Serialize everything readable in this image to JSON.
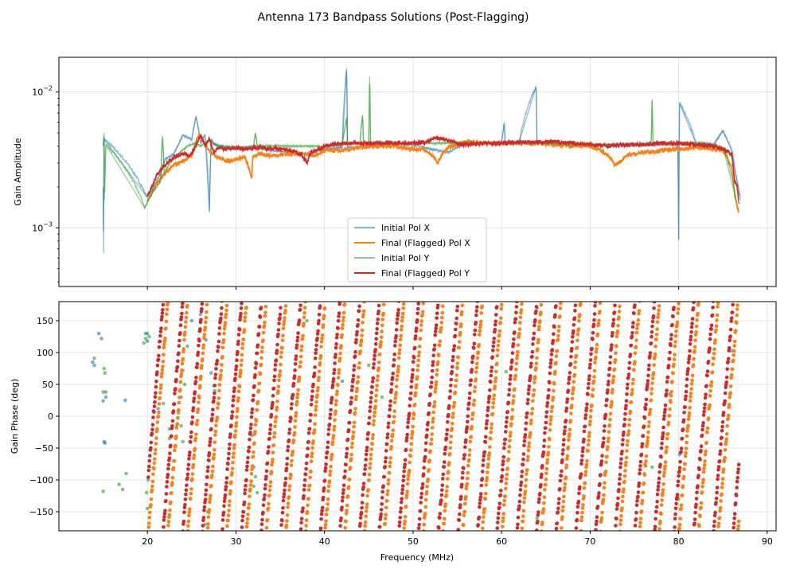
{
  "chart_data": [
    {
      "type": "line",
      "title": "Antenna 173 Bandpass Solutions (Post-Flagging)",
      "xlabel": "Frequency (MHz)",
      "ylabel": "Gain Amplitude",
      "yscale": "log",
      "xlim": [
        10,
        91
      ],
      "ylim": [
        0.00037,
        0.018
      ],
      "xticks": [
        20,
        30,
        40,
        50,
        60,
        70,
        80,
        90
      ],
      "yticks": [
        {
          "value": 0.001,
          "base": "10",
          "exp": "−3"
        },
        {
          "value": 0.01,
          "base": "10",
          "exp": "−2"
        }
      ],
      "legend_position": "lower-center",
      "series": [
        {
          "name": "Initial Pol X",
          "color": "#1f77b4",
          "alpha": 0.5,
          "x": [
            15.0,
            15.05,
            15.1,
            19.9,
            20.5,
            21.5,
            22.0,
            23.0,
            24.0,
            25.0,
            25.5,
            26.0,
            26.5,
            27.0,
            27.2,
            27.4,
            28.0,
            30.0,
            32.0,
            34.0,
            36.0,
            38.0,
            40.0,
            42.0,
            42.5,
            42.6,
            44.0,
            46.0,
            48.0,
            50.0,
            52.0,
            54.0,
            56.0,
            58.0,
            60.0,
            60.3,
            60.4,
            62.0,
            63.9,
            64.0,
            66.0,
            68.0,
            70.0,
            72.0,
            74.0,
            76.0,
            78.0,
            79.9,
            80.0,
            80.1,
            82.0,
            84.0,
            85.0,
            86.0,
            86.5,
            87.0
          ],
          "values": [
            0.002,
            0.00065,
            0.0045,
            0.0017,
            0.0019,
            0.0025,
            0.0032,
            0.0035,
            0.0048,
            0.0045,
            0.0066,
            0.0042,
            0.0048,
            0.0013,
            0.0045,
            0.0042,
            0.004,
            0.0038,
            0.0039,
            0.0037,
            0.0036,
            0.0035,
            0.0038,
            0.0039,
            0.015,
            0.0039,
            0.0039,
            0.0041,
            0.0041,
            0.0041,
            0.0038,
            0.0036,
            0.0042,
            0.0042,
            0.0042,
            0.006,
            0.0042,
            0.0043,
            0.011,
            0.0042,
            0.0042,
            0.0042,
            0.004,
            0.0041,
            0.0041,
            0.0041,
            0.0041,
            0.0041,
            0.00082,
            0.0083,
            0.0041,
            0.0041,
            0.0052,
            0.0037,
            0.0024,
            0.0016
          ]
        },
        {
          "name": "Final (Flagged) Pol X",
          "color": "#ff7f0e",
          "alpha": 1.0,
          "x": [
            20.0,
            20.5,
            21.0,
            22.0,
            23.0,
            24.0,
            25.0,
            25.8,
            26.3,
            27.0,
            28.0,
            29.0,
            30.0,
            31.0,
            31.8,
            31.9,
            32.0,
            33.0,
            34.0,
            36.0,
            37.0,
            38.0,
            39.0,
            40.0,
            42.0,
            44.0,
            46.0,
            48.0,
            50.0,
            51.0,
            52.0,
            52.8,
            53.3,
            54.0,
            55.0,
            56.0,
            57.0,
            58.0,
            60.0,
            62.0,
            64.0,
            66.0,
            68.0,
            70.0,
            71.0,
            72.0,
            72.8,
            73.5,
            74.0,
            75.0,
            76.0,
            78.0,
            80.0,
            82.0,
            84.0,
            85.0,
            85.5,
            86.0,
            86.3,
            86.6,
            86.8
          ],
          "values": [
            0.0016,
            0.0018,
            0.0021,
            0.0025,
            0.0029,
            0.0031,
            0.0034,
            0.0049,
            0.0043,
            0.0037,
            0.0033,
            0.0031,
            0.0032,
            0.0033,
            0.0023,
            0.0034,
            0.0034,
            0.0035,
            0.0034,
            0.0035,
            0.0035,
            0.0035,
            0.0034,
            0.0037,
            0.0037,
            0.0039,
            0.004,
            0.004,
            0.0038,
            0.0038,
            0.0035,
            0.003,
            0.0035,
            0.0039,
            0.0041,
            0.0043,
            0.0043,
            0.0042,
            0.0042,
            0.0042,
            0.0042,
            0.0041,
            0.004,
            0.004,
            0.0038,
            0.0034,
            0.0029,
            0.0031,
            0.0034,
            0.0035,
            0.0036,
            0.0037,
            0.0038,
            0.0039,
            0.0038,
            0.0037,
            0.0033,
            0.0027,
            0.0018,
            0.0014,
            0.0013
          ]
        },
        {
          "name": "Initial Pol Y",
          "color": "#2ca02c",
          "alpha": 0.5,
          "x": [
            15.0,
            15.1,
            15.15,
            15.3,
            19.7,
            20.5,
            21.5,
            21.7,
            21.9,
            22.5,
            23.5,
            24.5,
            25.5,
            26.0,
            27.0,
            28.0,
            30.0,
            32.0,
            32.2,
            32.4,
            34.0,
            38.0,
            40.0,
            42.0,
            42.5,
            42.6,
            44.0,
            44.3,
            44.4,
            45.0,
            45.1,
            45.2,
            47.0,
            50.0,
            55.0,
            60.0,
            65.0,
            70.0,
            75.0,
            76.9,
            77.0,
            77.1,
            80.0,
            83.0,
            85.0,
            86.5
          ],
          "values": [
            0.004,
            0.005,
            0.0016,
            0.0041,
            0.0014,
            0.0018,
            0.0022,
            0.0048,
            0.0025,
            0.003,
            0.0035,
            0.004,
            0.0042,
            0.004,
            0.0044,
            0.004,
            0.0039,
            0.004,
            0.005,
            0.004,
            0.004,
            0.004,
            0.004,
            0.0041,
            0.0065,
            0.0041,
            0.0042,
            0.0068,
            0.0042,
            0.0042,
            0.013,
            0.0042,
            0.0042,
            0.0042,
            0.0042,
            0.0042,
            0.0042,
            0.0041,
            0.0041,
            0.0042,
            0.0088,
            0.0042,
            0.0042,
            0.0042,
            0.0039,
            0.0016
          ]
        },
        {
          "name": "Final (Flagged) Pol Y",
          "color": "#d62728",
          "alpha": 1.0,
          "x": [
            20.0,
            20.5,
            21.0,
            22.0,
            23.0,
            24.0,
            24.8,
            25.5,
            26.0,
            26.5,
            27.0,
            27.5,
            28.0,
            29.0,
            30.0,
            31.0,
            32.0,
            33.0,
            35.0,
            36.5,
            37.5,
            38.0,
            38.5,
            39.5,
            40.0,
            42.0,
            44.0,
            46.0,
            48.0,
            50.0,
            51.5,
            52.5,
            53.5,
            54.5,
            55.5,
            56.0,
            58.0,
            60.0,
            62.0,
            64.0,
            66.0,
            68.0,
            70.0,
            72.0,
            74.0,
            76.0,
            78.0,
            80.0,
            82.0,
            84.0,
            85.0,
            86.0,
            86.3,
            86.6,
            86.8
          ],
          "values": [
            0.0017,
            0.002,
            0.0024,
            0.0029,
            0.0033,
            0.0035,
            0.0034,
            0.004,
            0.0048,
            0.004,
            0.0045,
            0.0036,
            0.0039,
            0.0038,
            0.0039,
            0.0038,
            0.0039,
            0.0039,
            0.0038,
            0.0037,
            0.0034,
            0.003,
            0.0036,
            0.0038,
            0.004,
            0.0042,
            0.0042,
            0.0042,
            0.0042,
            0.0042,
            0.0043,
            0.0046,
            0.0045,
            0.0043,
            0.0041,
            0.0041,
            0.0042,
            0.0042,
            0.0043,
            0.0043,
            0.0043,
            0.0042,
            0.0041,
            0.004,
            0.0041,
            0.0041,
            0.0042,
            0.0042,
            0.0041,
            0.004,
            0.0038,
            0.0035,
            0.0022,
            0.002,
            0.0015
          ]
        }
      ]
    },
    {
      "type": "scatter",
      "xlabel": "Frequency (MHz)",
      "ylabel": "Gain Phase (deg)",
      "xlim": [
        10,
        91
      ],
      "ylim": [
        -180,
        180
      ],
      "xticks": [
        20,
        30,
        40,
        50,
        60,
        70,
        80,
        90
      ],
      "yticks": [
        -150,
        -100,
        -50,
        0,
        50,
        100,
        150
      ],
      "phase_wrap_period_mhz": 2.22,
      "series": [
        {
          "name": "Initial Pol X",
          "color": "#1f77b4",
          "alpha": 0.6,
          "x": [
            13.8,
            14.0,
            14.5,
            14.8,
            15.0,
            15.1,
            15.2,
            15.3,
            17.5,
            19.8,
            20.0,
            21.2,
            22.5,
            23.8,
            24.0,
            24.5,
            25.0,
            26.0,
            26.6,
            27.0,
            27.2,
            31.8,
            32.0,
            42.0,
            55.0,
            64.0,
            79.0,
            80.1,
            86.0
          ],
          "values": [
            85,
            80,
            130,
            122,
            24,
            -40,
            -42,
            30,
            25,
            130,
            118,
            12,
            -20,
            30,
            72,
            110,
            150,
            160,
            120,
            -60,
            68,
            -30,
            -80,
            55,
            75,
            170,
            35,
            -60,
            103
          ]
        },
        {
          "name": "Initial Pol Y",
          "color": "#2ca02c",
          "alpha": 0.6,
          "x": [
            14.0,
            15.0,
            15.1,
            15.2,
            15.3,
            15.0,
            16.8,
            17.2,
            17.6,
            19.6,
            19.8,
            20.0,
            20.2,
            20.0,
            19.9,
            20.1,
            21.8,
            22.5,
            23.5,
            23.8,
            24.0,
            24.2,
            26.5,
            26.6,
            26.8,
            27.0,
            27.5,
            27.6,
            32.0,
            32.2,
            32.4,
            38.0,
            45.0,
            46.5,
            60.5,
            64.0,
            77.0,
            80.0
          ],
          "values": [
            91,
            38,
            75,
            68,
            38,
            -118,
            -107,
            -115,
            -90,
            115,
            122,
            130,
            125,
            -145,
            -120,
            -100,
            20,
            -35,
            5,
            -15,
            -40,
            50,
            -170,
            -130,
            -150,
            -70,
            48,
            40,
            -110,
            -95,
            -120,
            150,
            80,
            30,
            70,
            -160,
            -80,
            -130
          ]
        }
      ]
    }
  ]
}
